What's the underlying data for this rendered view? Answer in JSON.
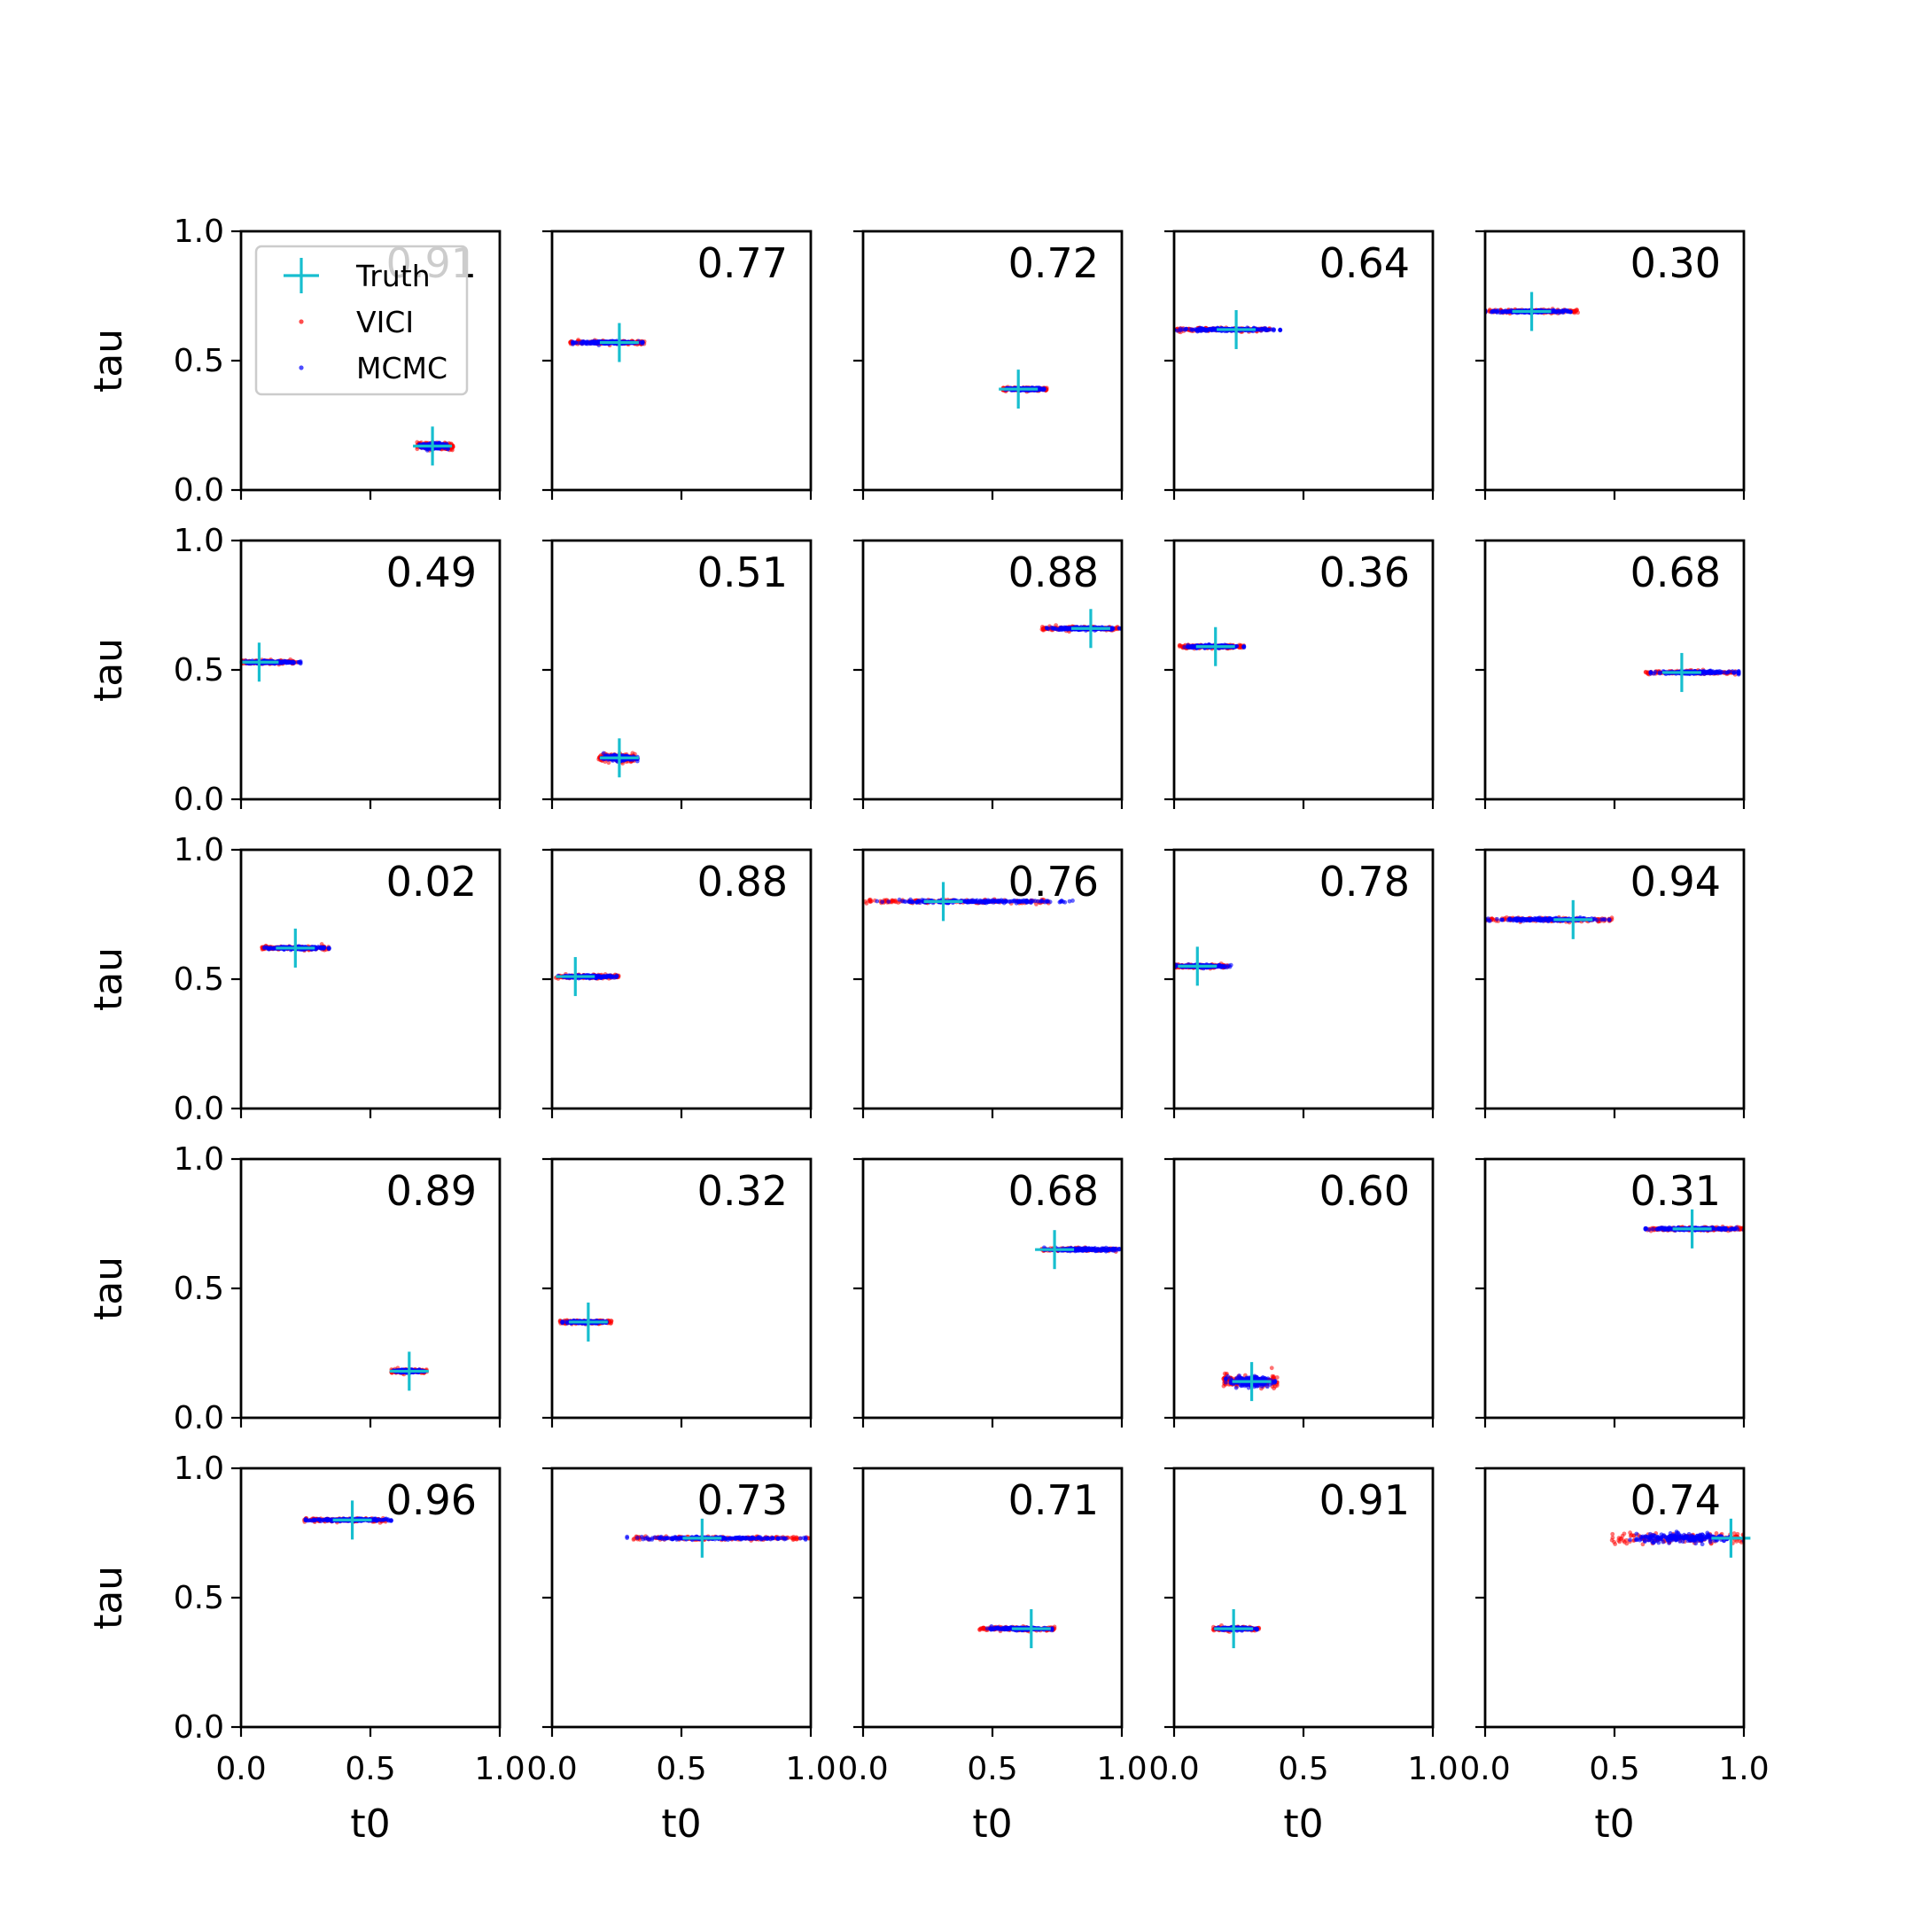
{
  "chart_data": {
    "type": "scatter",
    "layout": "5x5 grid of subplots",
    "xlabel": "t0",
    "ylabel": "tau",
    "xlim": [
      0,
      1
    ],
    "ylim": [
      0,
      1
    ],
    "xticks": [
      "0.0",
      "0.5",
      "1.0"
    ],
    "yticks": [
      "0.0",
      "0.5",
      "1.0"
    ],
    "grid": false,
    "legend": {
      "placement": "upper-left of first panel",
      "entries": [
        {
          "label": "Truth",
          "marker": "+",
          "color": "#17becf"
        },
        {
          "label": "VICI",
          "marker": "dot",
          "color": "#ff0000"
        },
        {
          "label": "MCMC",
          "marker": "dot",
          "color": "#0000ff"
        }
      ]
    },
    "series_colors": {
      "truth": "#17becf",
      "vici": "#ff0000",
      "mcmc": "#0000ff"
    },
    "panels": [
      {
        "score": "0.91",
        "truth": {
          "t0": 0.74,
          "tau": 0.17
        },
        "vici_t0": [
          0.68,
          0.82
        ],
        "mcmc_t0": [
          0.69,
          0.8
        ],
        "tau_spread": 0.02
      },
      {
        "score": "0.77",
        "truth": {
          "t0": 0.26,
          "tau": 0.57
        },
        "vici_t0": [
          0.07,
          0.36
        ],
        "mcmc_t0": [
          0.08,
          0.35
        ],
        "tau_spread": 0.01
      },
      {
        "score": "0.72",
        "truth": {
          "t0": 0.6,
          "tau": 0.39
        },
        "vici_t0": [
          0.54,
          0.71
        ],
        "mcmc_t0": [
          0.55,
          0.7
        ],
        "tau_spread": 0.01
      },
      {
        "score": "0.64",
        "truth": {
          "t0": 0.24,
          "tau": 0.62
        },
        "vici_t0": [
          0.01,
          0.37
        ],
        "mcmc_t0": [
          0.0,
          0.41
        ],
        "tau_spread": 0.01
      },
      {
        "score": "0.30",
        "truth": {
          "t0": 0.18,
          "tau": 0.69
        },
        "vici_t0": [
          0.0,
          0.36
        ],
        "mcmc_t0": [
          0.0,
          0.33
        ],
        "tau_spread": 0.01
      },
      {
        "score": "0.49",
        "truth": {
          "t0": 0.07,
          "tau": 0.53
        },
        "vici_t0": [
          0.0,
          0.22
        ],
        "mcmc_t0": [
          0.0,
          0.23
        ],
        "tau_spread": 0.01
      },
      {
        "score": "0.51",
        "truth": {
          "t0": 0.26,
          "tau": 0.16
        },
        "vici_t0": [
          0.18,
          0.32
        ],
        "mcmc_t0": [
          0.19,
          0.33
        ],
        "tau_spread": 0.02
      },
      {
        "score": "0.88",
        "truth": {
          "t0": 0.88,
          "tau": 0.66
        },
        "vici_t0": [
          0.69,
          0.99
        ],
        "mcmc_t0": [
          0.71,
          1.0
        ],
        "tau_spread": 0.01
      },
      {
        "score": "0.36",
        "truth": {
          "t0": 0.16,
          "tau": 0.59
        },
        "vici_t0": [
          0.02,
          0.27
        ],
        "mcmc_t0": [
          0.04,
          0.27
        ],
        "tau_spread": 0.01
      },
      {
        "score": "0.68",
        "truth": {
          "t0": 0.76,
          "tau": 0.49
        },
        "vici_t0": [
          0.62,
          0.97
        ],
        "mcmc_t0": [
          0.64,
          0.98
        ],
        "tau_spread": 0.01
      },
      {
        "score": "0.02",
        "truth": {
          "t0": 0.21,
          "tau": 0.62
        },
        "vici_t0": [
          0.08,
          0.34
        ],
        "mcmc_t0": [
          0.09,
          0.34
        ],
        "tau_spread": 0.01
      },
      {
        "score": "0.88",
        "truth": {
          "t0": 0.09,
          "tau": 0.51
        },
        "vici_t0": [
          0.01,
          0.26
        ],
        "mcmc_t0": [
          0.02,
          0.25
        ],
        "tau_spread": 0.01
      },
      {
        "score": "0.76",
        "truth": {
          "t0": 0.31,
          "tau": 0.8
        },
        "vici_t0": [
          0.0,
          0.72
        ],
        "mcmc_t0": [
          0.0,
          0.81
        ],
        "tau_spread": 0.01
      },
      {
        "score": "0.78",
        "truth": {
          "t0": 0.09,
          "tau": 0.55
        },
        "vici_t0": [
          0.0,
          0.21
        ],
        "mcmc_t0": [
          0.0,
          0.22
        ],
        "tau_spread": 0.01
      },
      {
        "score": "0.94",
        "truth": {
          "t0": 0.34,
          "tau": 0.73
        },
        "vici_t0": [
          0.0,
          0.49
        ],
        "mcmc_t0": [
          0.0,
          0.48
        ],
        "tau_spread": 0.01
      },
      {
        "score": "0.89",
        "truth": {
          "t0": 0.65,
          "tau": 0.18
        },
        "vici_t0": [
          0.58,
          0.72
        ],
        "mcmc_t0": [
          0.59,
          0.71
        ],
        "tau_spread": 0.01
      },
      {
        "score": "0.32",
        "truth": {
          "t0": 0.14,
          "tau": 0.37
        },
        "vici_t0": [
          0.03,
          0.23
        ],
        "mcmc_t0": [
          0.04,
          0.21
        ],
        "tau_spread": 0.01
      },
      {
        "score": "0.68",
        "truth": {
          "t0": 0.74,
          "tau": 0.65
        },
        "vici_t0": [
          0.69,
          0.98
        ],
        "mcmc_t0": [
          0.7,
          0.99
        ],
        "tau_spread": 0.01
      },
      {
        "score": "0.60",
        "truth": {
          "t0": 0.3,
          "tau": 0.14
        },
        "vici_t0": [
          0.19,
          0.4
        ],
        "mcmc_t0": [
          0.2,
          0.39
        ],
        "tau_spread": 0.035
      },
      {
        "score": "0.31",
        "truth": {
          "t0": 0.8,
          "tau": 0.73
        },
        "vici_t0": [
          0.62,
          1.0
        ],
        "mcmc_t0": [
          0.62,
          1.0
        ],
        "tau_spread": 0.01
      },
      {
        "score": "0.96",
        "truth": {
          "t0": 0.43,
          "tau": 0.8
        },
        "vici_t0": [
          0.24,
          0.56
        ],
        "mcmc_t0": [
          0.25,
          0.58
        ],
        "tau_spread": 0.01
      },
      {
        "score": "0.73",
        "truth": {
          "t0": 0.58,
          "tau": 0.73
        },
        "vici_t0": [
          0.31,
          1.0
        ],
        "mcmc_t0": [
          0.29,
          0.98
        ],
        "tau_spread": 0.01
      },
      {
        "score": "0.71",
        "truth": {
          "t0": 0.65,
          "tau": 0.38
        },
        "vici_t0": [
          0.45,
          0.74
        ],
        "mcmc_t0": [
          0.48,
          0.73
        ],
        "tau_spread": 0.01
      },
      {
        "score": "0.91",
        "truth": {
          "t0": 0.23,
          "tau": 0.38
        },
        "vici_t0": [
          0.15,
          0.33
        ],
        "mcmc_t0": [
          0.16,
          0.32
        ],
        "tau_spread": 0.01
      },
      {
        "score": "0.74",
        "truth": {
          "t0": 0.95,
          "tau": 0.73
        },
        "vici_t0": [
          0.49,
          1.0
        ],
        "mcmc_t0": [
          0.56,
          1.0
        ],
        "tau_spread": 0.03
      }
    ]
  }
}
